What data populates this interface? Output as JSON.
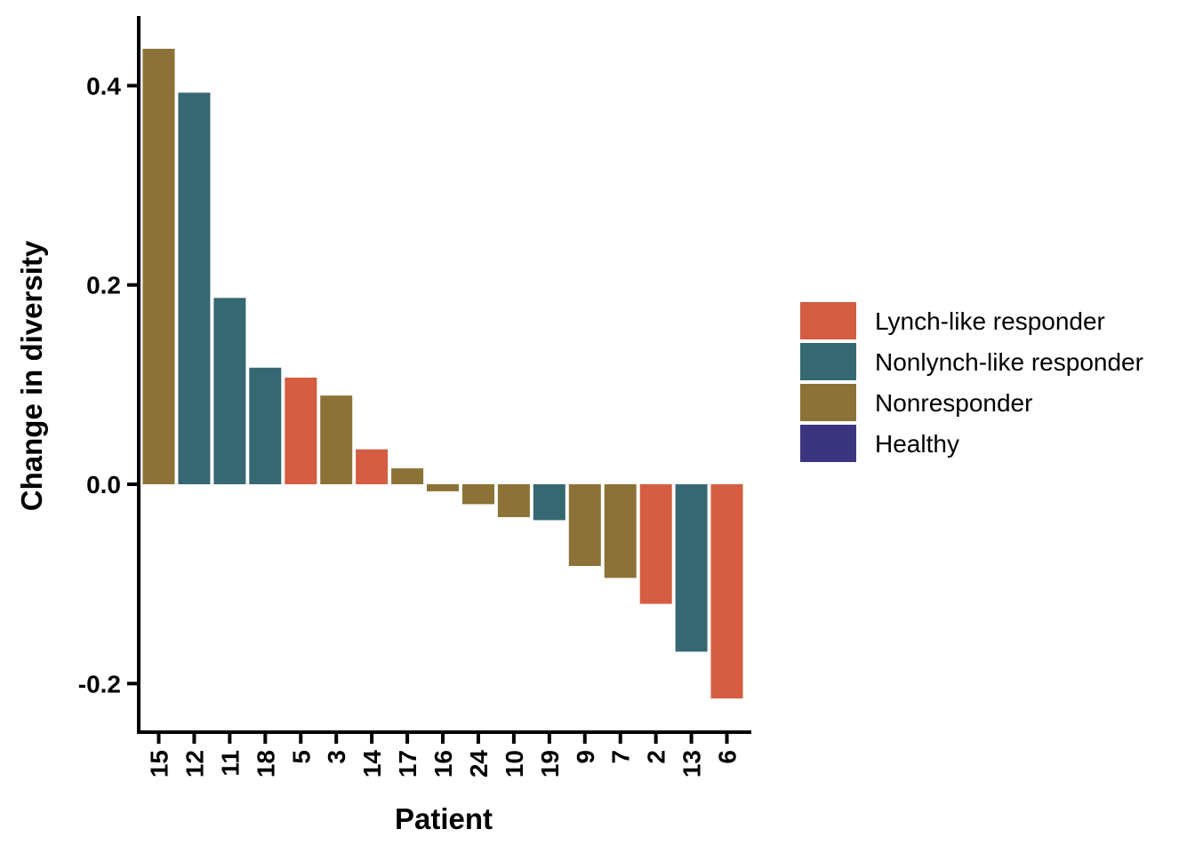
{
  "chart_data": {
    "type": "bar",
    "xlabel": "Patient",
    "ylabel": "Change in diversity",
    "ylim": [
      -0.235,
      0.47
    ],
    "y_ticks": [
      -0.2,
      0.0,
      0.2,
      0.4
    ],
    "y_tick_labels": [
      "-0.2",
      "0.0",
      "0.2",
      "0.4"
    ],
    "categories": [
      "15",
      "12",
      "11",
      "18",
      "5",
      "3",
      "14",
      "17",
      "16",
      "24",
      "10",
      "19",
      "9",
      "7",
      "2",
      "13",
      "6"
    ],
    "values": [
      0.437,
      0.393,
      0.187,
      0.117,
      0.107,
      0.089,
      0.035,
      0.016,
      -0.007,
      -0.02,
      -0.033,
      -0.036,
      -0.082,
      -0.094,
      -0.12,
      -0.168,
      -0.215
    ],
    "groups": [
      "Nonresponder",
      "Nonlynch-like responder",
      "Nonlynch-like responder",
      "Nonlynch-like responder",
      "Lynch-like responder",
      "Nonresponder",
      "Lynch-like responder",
      "Nonresponder",
      "Nonresponder",
      "Nonresponder",
      "Nonresponder",
      "Nonlynch-like responder",
      "Nonresponder",
      "Nonresponder",
      "Lynch-like responder",
      "Nonlynch-like responder",
      "Lynch-like responder"
    ],
    "legend": [
      {
        "label": "Lynch-like responder",
        "color": "#D45D42"
      },
      {
        "label": "Nonlynch-like responder",
        "color": "#366872"
      },
      {
        "label": "Nonresponder",
        "color": "#8C7236"
      },
      {
        "label": "Healthy",
        "color": "#3B3580"
      }
    ],
    "legend_position": "right",
    "grid": false
  }
}
